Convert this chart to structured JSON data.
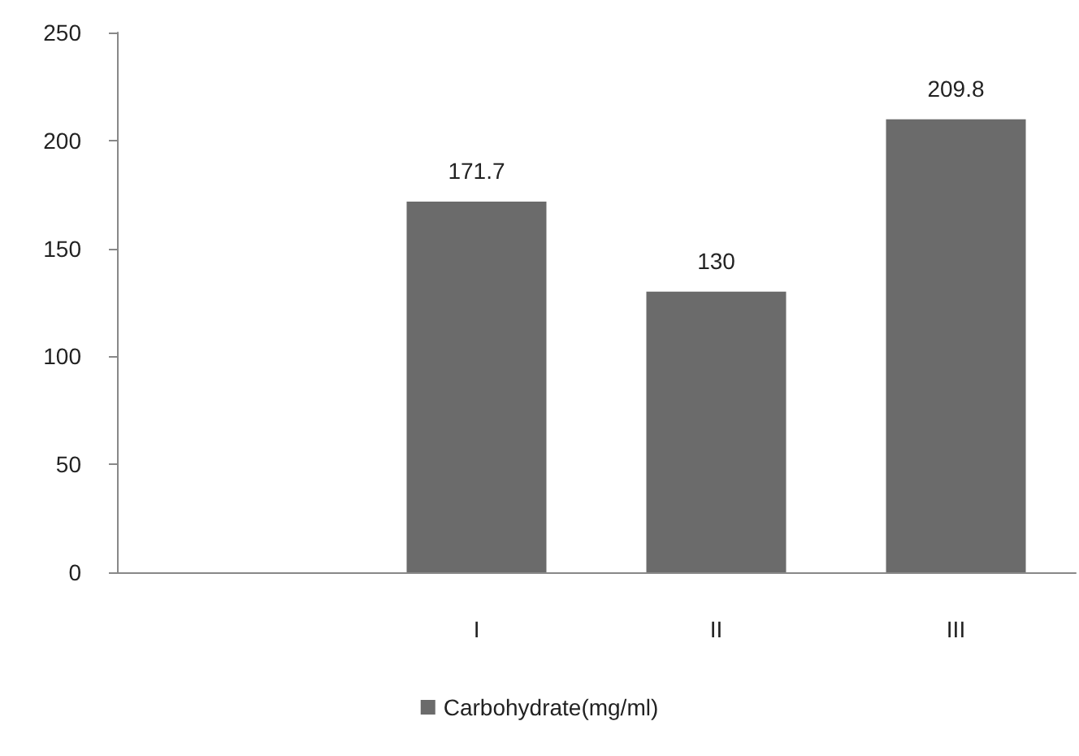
{
  "chart_data": {
    "type": "bar",
    "categories": [
      null,
      "I",
      "II",
      "III"
    ],
    "series": [
      {
        "name": "Carbohydrate(mg/ml)",
        "color": "#6b6b6b",
        "values": [
          null,
          171.7,
          130,
          209.8
        ]
      }
    ],
    "ylim": [
      0,
      250
    ],
    "yticks": [
      0,
      50,
      100,
      150,
      200,
      250
    ],
    "grid": false,
    "legend": "bottom",
    "data_labels": true
  }
}
